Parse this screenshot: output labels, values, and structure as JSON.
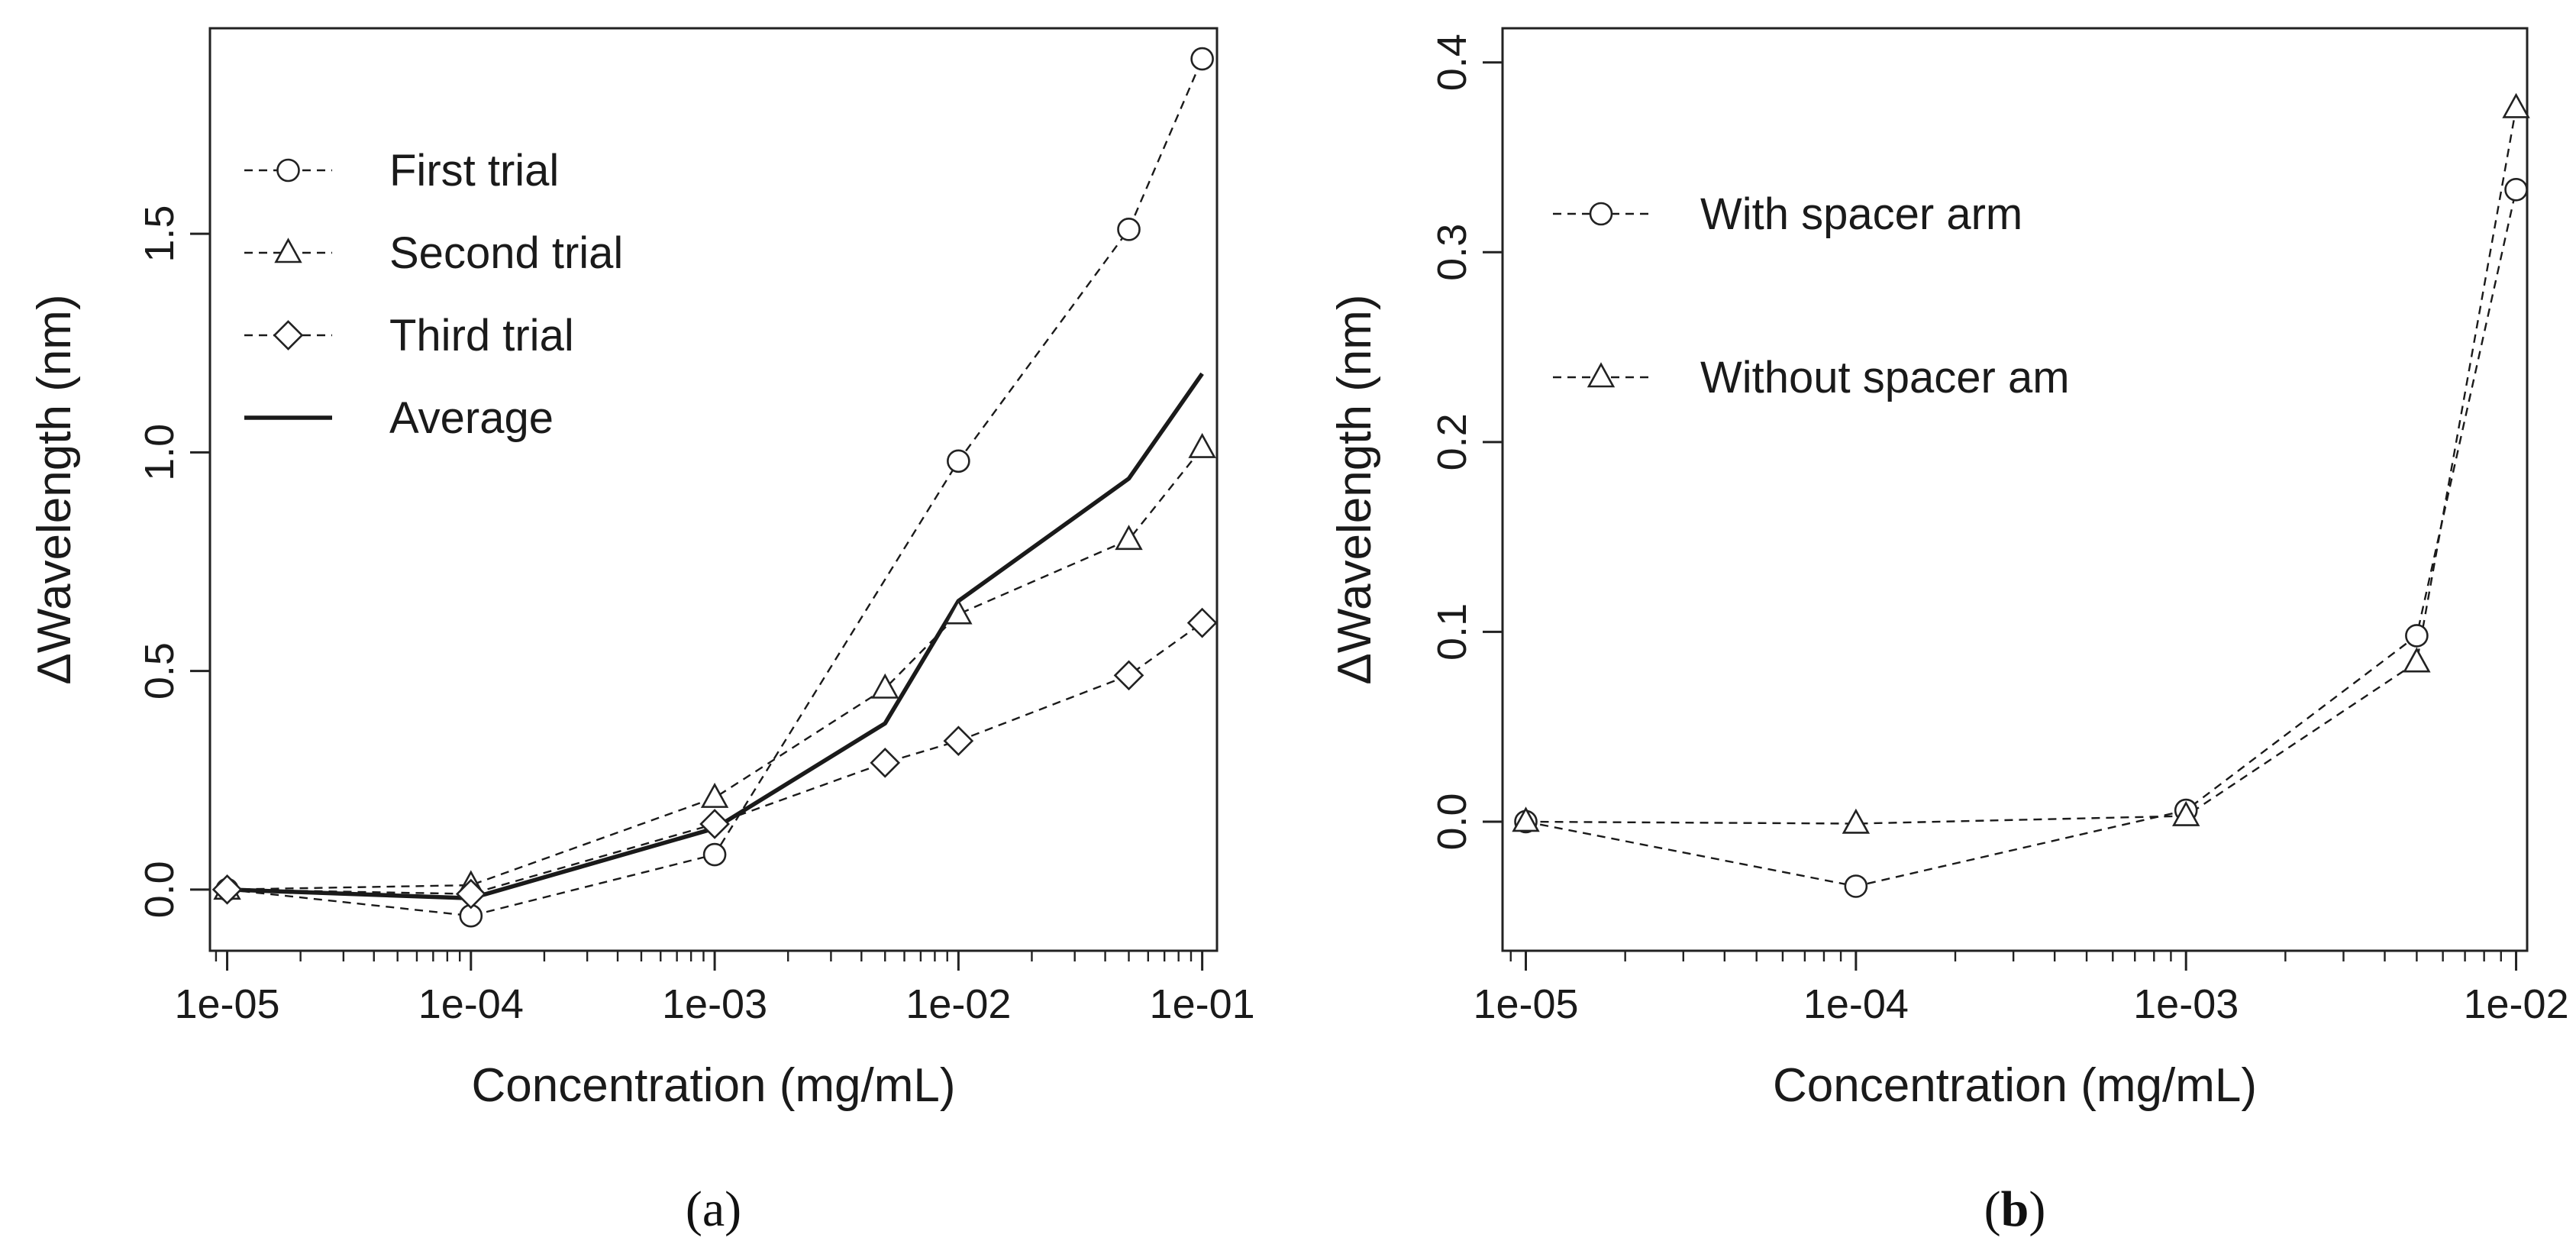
{
  "chart_data": [
    {
      "type": "line",
      "panel": "a",
      "panel_label": {
        "open": "(",
        "letter": "a",
        "close": ")"
      },
      "title": "",
      "xlabel": "Concentration (mg/mL)",
      "ylabel": "ΔWavelength (nm)",
      "xscale": "log",
      "xlim": [
        8.5e-06,
        0.115
      ],
      "ylim": [
        -0.14,
        1.97
      ],
      "xticks": [
        1e-05,
        0.0001,
        0.001,
        0.01,
        0.1
      ],
      "xtick_labels": [
        "1e-05",
        "1e-04",
        "1e-03",
        "1e-02",
        "1e-01"
      ],
      "yticks": [
        0,
        0.5,
        1.0,
        1.5
      ],
      "ytick_labels": [
        "0.0",
        "0.5",
        "1.0",
        "1.5"
      ],
      "legend_position": "top-left",
      "series": [
        {
          "name": "First trial",
          "line": "dashed",
          "marker": "circle",
          "x": [
            1e-05,
            0.0001,
            0.001,
            0.01,
            0.05,
            0.1
          ],
          "y": [
            0.0,
            -0.06,
            0.08,
            0.98,
            1.51,
            1.9
          ]
        },
        {
          "name": "Second trial",
          "line": "dashed",
          "marker": "triangle",
          "x": [
            1e-05,
            0.0001,
            0.001,
            0.005,
            0.01,
            0.05,
            0.1
          ],
          "y": [
            0.0,
            0.01,
            0.21,
            0.46,
            0.63,
            0.8,
            1.01
          ]
        },
        {
          "name": "Third trial",
          "line": "dashed",
          "marker": "diamond",
          "x": [
            1e-05,
            0.0001,
            0.001,
            0.005,
            0.01,
            0.05,
            0.1
          ],
          "y": [
            0.0,
            -0.01,
            0.15,
            0.29,
            0.34,
            0.49,
            0.61
          ]
        },
        {
          "name": "Average",
          "line": "solid",
          "marker": "none",
          "x": [
            1e-05,
            0.0001,
            0.001,
            0.005,
            0.01,
            0.05,
            0.1
          ],
          "y": [
            0.0,
            -0.02,
            0.14,
            0.38,
            0.66,
            0.94,
            1.18
          ]
        }
      ]
    },
    {
      "type": "line",
      "panel": "b",
      "panel_label": {
        "open": "(",
        "letter": "b",
        "close": ")"
      },
      "title": "",
      "xlabel": "Concentration (mg/mL)",
      "ylabel": "ΔWavelength (nm)",
      "xscale": "log",
      "xlim": [
        8.5e-06,
        0.0108
      ],
      "ylim": [
        -0.068,
        0.418
      ],
      "xticks": [
        1e-05,
        0.0001,
        0.001,
        0.01
      ],
      "xtick_labels": [
        "1e-05",
        "1e-04",
        "1e-03",
        "1e-02"
      ],
      "yticks": [
        0,
        0.1,
        0.2,
        0.3,
        0.4
      ],
      "ytick_labels": [
        "0.0",
        "0.1",
        "0.2",
        "0.3",
        "0.4"
      ],
      "legend_position": "top-left",
      "series": [
        {
          "name": "With spacer arm",
          "line": "dashed",
          "marker": "circle",
          "x": [
            1e-05,
            0.0001,
            0.001,
            0.005,
            0.01
          ],
          "y": [
            0.0,
            -0.034,
            0.006,
            0.098,
            0.333
          ]
        },
        {
          "name": "Without spacer am",
          "line": "dashed",
          "marker": "triangle",
          "x": [
            1e-05,
            0.0001,
            0.001,
            0.005,
            0.01
          ],
          "y": [
            0.0,
            -0.001,
            0.003,
            0.084,
            0.376
          ]
        }
      ]
    }
  ]
}
